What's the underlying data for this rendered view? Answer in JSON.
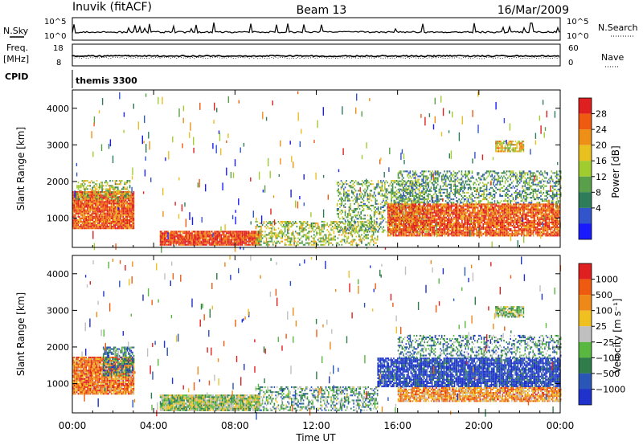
{
  "header": {
    "station": "Inuvik (fitACF)",
    "beam": "Beam 13",
    "date": "16/Mar/2009"
  },
  "status_panels": {
    "nsky_label": "N.Sky",
    "nsky_ticks": [
      "10^5",
      "10^0"
    ],
    "nsearch_label": "N.Search",
    "nsearch_ticks": [
      "10^5",
      "10^0"
    ],
    "freq_label": "Freq.",
    "freq_unit": "[MHz]",
    "freq_ticks": [
      "18",
      "8"
    ],
    "nave_label": "Nave",
    "nave_ticks": [
      "60",
      "0"
    ],
    "cpid_label": "CPID",
    "cpid_value": "themis 3300"
  },
  "chart_data": [
    {
      "type": "heatmap",
      "name": "power",
      "ylabel": "Slant Range [km]",
      "xlabel": "",
      "y_ticks": [
        "4000",
        "3000",
        "2000",
        "1000"
      ],
      "ylim": [
        200,
        4500
      ],
      "colorbar_label": "Power [dB]",
      "colorbar_ticks": [
        "28",
        "24",
        "20",
        "16",
        "12",
        "8",
        "4"
      ],
      "colors": [
        "#1a1aff",
        "#3355cc",
        "#2e7d5a",
        "#5aa04a",
        "#a0cc30",
        "#e8c020",
        "#ee9018",
        "#ee5a10",
        "#e02020"
      ],
      "blobs": [
        {
          "t0": 0.0,
          "t1": 3.0,
          "r0": 700,
          "r1": 1700,
          "level": 0.85,
          "density": 0.95
        },
        {
          "t0": 0.2,
          "t1": 2.8,
          "r0": 1500,
          "r1": 2000,
          "level": 0.5,
          "density": 0.5
        },
        {
          "t0": 4.3,
          "t1": 9.2,
          "r0": 250,
          "r1": 650,
          "level": 0.9,
          "density": 0.95
        },
        {
          "t0": 9.0,
          "t1": 15.0,
          "r0": 250,
          "r1": 900,
          "level": 0.5,
          "density": 0.45
        },
        {
          "t0": 13.0,
          "t1": 17.5,
          "r0": 600,
          "r1": 2000,
          "level": 0.4,
          "density": 0.4
        },
        {
          "t0": 15.5,
          "t1": 24.0,
          "r0": 500,
          "r1": 1400,
          "level": 0.85,
          "density": 0.9
        },
        {
          "t0": 16.0,
          "t1": 24.0,
          "r0": 1400,
          "r1": 2300,
          "level": 0.35,
          "density": 0.45
        },
        {
          "t0": 20.8,
          "t1": 22.2,
          "r0": 2800,
          "r1": 3100,
          "level": 0.6,
          "density": 0.8
        }
      ]
    },
    {
      "type": "heatmap",
      "name": "velocity",
      "ylabel": "Slant Range [km]",
      "xlabel": "Time UT",
      "x_ticks": [
        "00:00",
        "04:00",
        "08:00",
        "12:00",
        "16:00",
        "20:00",
        "00:00"
      ],
      "xlim_hours": [
        0,
        24
      ],
      "y_ticks": [
        "4000",
        "3000",
        "2000",
        "1000"
      ],
      "ylim": [
        200,
        4500
      ],
      "colorbar_label": "Velocity [m s⁻¹]",
      "colorbar_ticks": [
        "1000",
        "500",
        "100",
        "25",
        "−25",
        "−100",
        "−500",
        "−1000"
      ],
      "colors": [
        "#1f33cc",
        "#2a56b8",
        "#2e7d4a",
        "#58b840",
        "#c0c0c0",
        "#f0c020",
        "#ee8818",
        "#ee5a10",
        "#e02020"
      ],
      "blobs": [
        {
          "t0": 0.0,
          "t1": 3.0,
          "r0": 700,
          "r1": 1700,
          "level": 0.75,
          "density": 0.95
        },
        {
          "t0": 1.5,
          "t1": 3.0,
          "r0": 1200,
          "r1": 2000,
          "level": 0.25,
          "density": 0.6
        },
        {
          "t0": 4.3,
          "t1": 9.2,
          "r0": 250,
          "r1": 700,
          "level": 0.45,
          "density": 0.95
        },
        {
          "t0": 9.0,
          "t1": 15.0,
          "r0": 250,
          "r1": 900,
          "level": 0.35,
          "density": 0.45
        },
        {
          "t0": 15.0,
          "t1": 24.0,
          "r0": 900,
          "r1": 1700,
          "level": 0.05,
          "density": 0.85
        },
        {
          "t0": 16.0,
          "t1": 24.0,
          "r0": 500,
          "r1": 900,
          "level": 0.7,
          "density": 0.85
        },
        {
          "t0": 16.0,
          "t1": 24.0,
          "r0": 1700,
          "r1": 2300,
          "level": 0.3,
          "density": 0.4
        },
        {
          "t0": 20.8,
          "t1": 22.2,
          "r0": 2800,
          "r1": 3100,
          "level": 0.45,
          "density": 0.8
        }
      ]
    }
  ]
}
